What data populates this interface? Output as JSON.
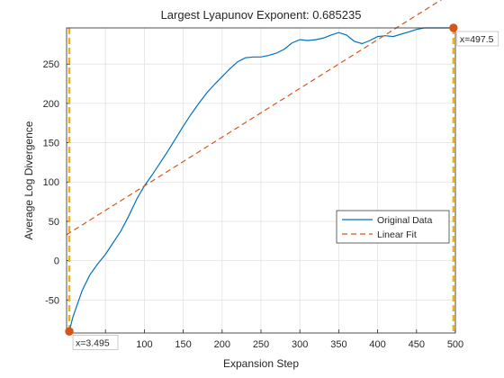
{
  "chart_data": {
    "type": "line",
    "title": "Largest Lyapunov Exponent: 0.685235",
    "xlabel": "Expansion Step",
    "ylabel": "Average Log Divergence",
    "xlim": [
      0,
      500
    ],
    "ylim": [
      -92,
      296
    ],
    "xticks": [
      50,
      100,
      150,
      200,
      250,
      300,
      350,
      400,
      450,
      500
    ],
    "yticks": [
      -50,
      0,
      50,
      100,
      150,
      200,
      250
    ],
    "grid": true,
    "legend_position": "center-right",
    "series": [
      {
        "name": "Original Data",
        "color": "#0072BD",
        "style": "solid",
        "x": [
          3.495,
          8,
          15,
          20,
          30,
          40,
          50,
          60,
          70,
          80,
          90,
          100,
          110,
          120,
          130,
          140,
          150,
          160,
          170,
          180,
          190,
          200,
          210,
          220,
          230,
          240,
          250,
          260,
          270,
          280,
          290,
          300,
          310,
          320,
          330,
          340,
          350,
          360,
          370,
          380,
          390,
          400,
          410,
          420,
          430,
          440,
          450,
          460,
          470,
          480,
          490,
          497.5
        ],
        "values": [
          -90,
          -72,
          -52,
          -38,
          -18,
          -4,
          8,
          23,
          38,
          57,
          78,
          95,
          109,
          124,
          139,
          155,
          171,
          186,
          200,
          213,
          224,
          234,
          244,
          253,
          258,
          259,
          259,
          261,
          264,
          269,
          277,
          281,
          280,
          281,
          283,
          287,
          290,
          287,
          279,
          276,
          280,
          285,
          286,
          285,
          288,
          291,
          294,
          296,
          296,
          296,
          296,
          296
        ]
      },
      {
        "name": "Linear Fit",
        "color": "#D95319",
        "style": "dashed",
        "x": [
          0,
          500
        ],
        "values": [
          33,
          343
        ]
      }
    ],
    "annotations": [
      {
        "text": "x=3.495",
        "x": 3.495,
        "y": -90
      },
      {
        "text": "x=497.5",
        "x": 497.5,
        "y": 296
      }
    ],
    "vertical_markers": [
      3.495,
      497.5
    ],
    "marker_color": "#EDB120"
  }
}
